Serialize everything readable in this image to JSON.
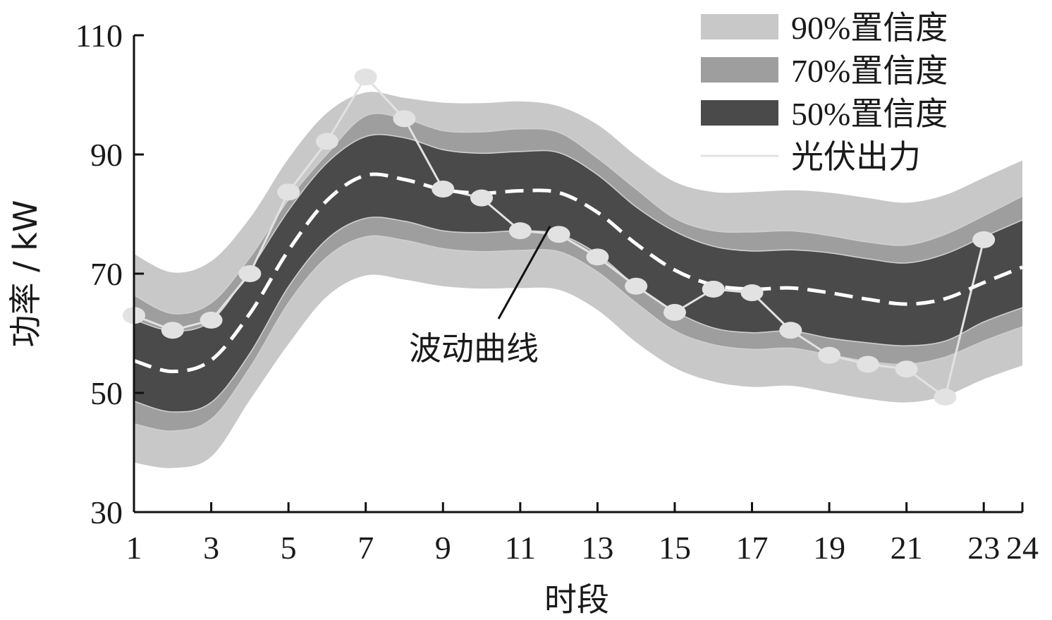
{
  "chart_data": {
    "type": "area",
    "xlabel": "时段",
    "ylabel": "功率 / kW",
    "xlim": [
      1,
      24
    ],
    "ylim": [
      30,
      110
    ],
    "x_ticks": [
      1,
      3,
      5,
      7,
      9,
      11,
      13,
      15,
      17,
      19,
      21,
      23,
      24
    ],
    "y_ticks": [
      30,
      50,
      70,
      90,
      110
    ],
    "x": [
      1,
      2,
      3,
      4,
      5,
      6,
      7,
      8,
      9,
      10,
      11,
      12,
      13,
      14,
      15,
      16,
      17,
      18,
      19,
      20,
      21,
      22,
      23,
      24
    ],
    "bands": [
      {
        "name": "90%置信度",
        "color": "#c8c8c8",
        "upper": [
          73.3,
          70.2,
          72.1,
          79.3,
          89.3,
          97.0,
          100.4,
          99.5,
          98.7,
          98.6,
          98.9,
          98.1,
          95.0,
          89.8,
          85.4,
          83.7,
          83.7,
          84.0,
          83.6,
          82.7,
          81.9,
          83.2,
          86.1,
          89.0
        ],
        "lower": [
          38.3,
          37.4,
          39.3,
          48.8,
          58.2,
          66.2,
          69.7,
          69.0,
          67.9,
          67.5,
          67.6,
          67.3,
          63.9,
          58.5,
          54.2,
          51.9,
          51.0,
          51.2,
          50.1,
          49.0,
          48.4,
          49.5,
          52.3,
          54.6
        ]
      },
      {
        "name": "70%置信度",
        "color": "#9e9e9e",
        "upper": [
          66.4,
          63.3,
          65.1,
          72.7,
          82.4,
          90.1,
          96.5,
          96.0,
          94.0,
          93.8,
          94.3,
          93.7,
          89.4,
          84.2,
          79.3,
          77.2,
          77.0,
          77.2,
          76.4,
          75.3,
          74.8,
          76.6,
          79.7,
          83.0
        ],
        "lower": [
          44.8,
          43.6,
          45.6,
          54.2,
          65.1,
          72.8,
          76.2,
          75.6,
          74.2,
          73.7,
          73.9,
          73.7,
          70.3,
          65.1,
          60.4,
          58.1,
          57.3,
          57.5,
          56.4,
          55.3,
          54.8,
          56.0,
          58.7,
          61.1
        ]
      },
      {
        "name": "50%置信度",
        "color": "#4a4a4a",
        "upper": [
          62.3,
          60.4,
          62.1,
          70.6,
          80.6,
          88.6,
          93.0,
          92.8,
          90.8,
          90.2,
          90.5,
          90.3,
          86.6,
          81.2,
          77.1,
          74.6,
          73.8,
          74.0,
          73.5,
          72.5,
          71.8,
          73.3,
          76.2,
          79.0
        ],
        "lower": [
          48.6,
          46.8,
          48.4,
          56.6,
          67.8,
          75.8,
          79.3,
          78.8,
          77.2,
          76.9,
          77.2,
          76.6,
          73.3,
          67.9,
          63.7,
          60.9,
          60.1,
          60.4,
          59.2,
          58.4,
          57.9,
          58.7,
          61.9,
          64.3
        ]
      }
    ],
    "series": [
      {
        "name": "光伏出力",
        "style": "line-with-markers",
        "color": "#e2e2e2",
        "values": [
          63.0,
          60.5,
          62.2,
          70.0,
          83.7,
          92.2,
          103.0,
          96.0,
          84.2,
          82.7,
          77.2,
          76.6,
          72.8,
          67.9,
          63.5,
          67.4,
          66.8,
          60.5,
          56.3,
          54.8,
          54.0,
          49.3,
          75.7,
          null
        ]
      },
      {
        "name": "",
        "style": "dashed",
        "color": "#ffffff",
        "values": [
          55.4,
          53.6,
          55.5,
          63.3,
          73.9,
          82.3,
          86.5,
          85.8,
          84.1,
          83.5,
          83.9,
          83.6,
          80.3,
          75.0,
          70.6,
          68.1,
          67.4,
          67.6,
          66.8,
          65.7,
          64.9,
          65.8,
          68.5,
          71.1
        ]
      }
    ],
    "annotation": {
      "text": "波动曲线",
      "target_x": 11.7,
      "target_y": 77.5
    },
    "legend_position": "top-right",
    "legend": [
      {
        "label": "90%置信度",
        "kind": "band",
        "color": "#c8c8c8"
      },
      {
        "label": "70%置信度",
        "kind": "band",
        "color": "#9e9e9e"
      },
      {
        "label": "50%置信度",
        "kind": "band",
        "color": "#4a4a4a"
      },
      {
        "label": "光伏出力",
        "kind": "line",
        "color": "#e2e2e2"
      }
    ],
    "grid": false
  }
}
